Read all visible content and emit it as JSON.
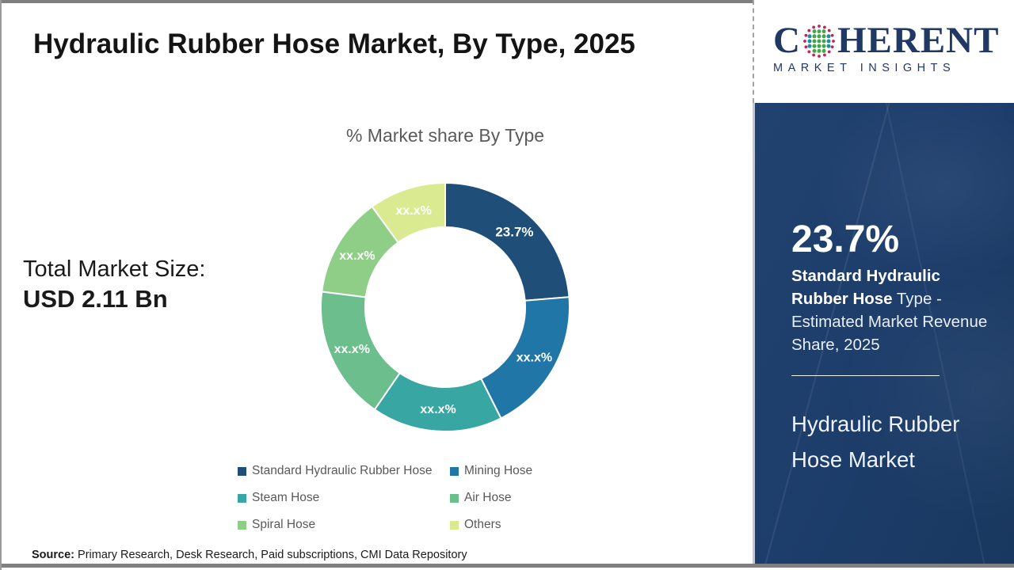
{
  "page": {
    "title": "Hydraulic Rubber Hose Market, By Type, 2025",
    "source_label": "Source:",
    "source_text": " Primary Research, Desk Research, Paid subscriptions, CMI Data Repository"
  },
  "logo": {
    "brand_start": "C",
    "brand_rest": "HERENT",
    "tagline": "MARKET INSIGHTS",
    "text_color": "#203864",
    "globe_dot_colors": {
      "outer_ring": "#c0245f",
      "inner_side": "#1f8ca8",
      "inner_center": "#44a649"
    }
  },
  "left_panel": {
    "total_label": "Total Market Size:",
    "total_value": "USD 2.11 Bn"
  },
  "chart_data": {
    "type": "pie",
    "subtype": "donut",
    "title": "% Market share By Type",
    "start_angle_deg": 0,
    "outer_radius": 157,
    "inner_radius": 101,
    "label_radius": 129,
    "categories": [
      "Standard Hydraulic Rubber Hose",
      "Mining Hose",
      "Steam Hose",
      "Air Hose",
      "Spiral Hose",
      "Others"
    ],
    "values": [
      23.7,
      18.9,
      17.0,
      17.4,
      13.0,
      10.0
    ],
    "labels": [
      "23.7%",
      "xx.x%",
      "xx.x%",
      "xx.x%",
      "xx.x%",
      "xx.x%"
    ],
    "colors": [
      "#1f4e79",
      "#2076a7",
      "#38a6a2",
      "#6dbe8d",
      "#8fce86",
      "#d9ea90"
    ],
    "slice_label_color": "#ffffff",
    "legend_position": "bottom",
    "note": "Only the first slice value (23.7%) is shown in the image; other slice values are masked as xx.x% and geometry is estimated from arc angles."
  },
  "sidebar": {
    "bg_color": "#1d3d6b",
    "stat_value": "23.7%",
    "stat_bold": "Standard Hydraulic Rubber Hose",
    "stat_rest": " Type - Estimated Market Revenue Share, 2025",
    "market_name": "Hydraulic Rubber Hose Market"
  }
}
